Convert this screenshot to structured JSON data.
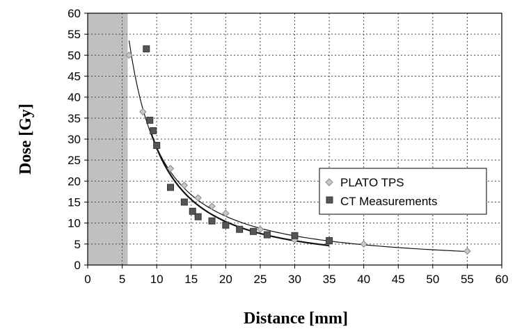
{
  "chart_data": {
    "type": "scatter",
    "title": "",
    "xlabel": "Distance [mm]",
    "ylabel": "Dose [Gy]",
    "xlim": [
      0,
      60
    ],
    "ylim": [
      0,
      60
    ],
    "xticks": [
      0,
      5,
      10,
      15,
      20,
      25,
      30,
      35,
      40,
      45,
      50,
      55,
      60
    ],
    "yticks": [
      0,
      5,
      10,
      15,
      20,
      25,
      30,
      35,
      40,
      45,
      50,
      55,
      60
    ],
    "grid": true,
    "legend_position": "center-right",
    "shaded_region": {
      "x": [
        0,
        5.8
      ],
      "color": "#c0c0c0"
    },
    "series": [
      {
        "name": "PLATO TPS",
        "marker": "diamond",
        "color": "#c8c8c8",
        "x": [
          6,
          8,
          10,
          12,
          14,
          16,
          18,
          20,
          25,
          30,
          35,
          40,
          55
        ],
        "y": [
          50,
          36.5,
          28.5,
          23,
          19,
          16,
          14,
          12.3,
          8.5,
          6,
          5.5,
          5,
          3.3
        ]
      },
      {
        "name": "CT Measurements",
        "marker": "square",
        "color": "#555555",
        "x": [
          8.5,
          9,
          9.5,
          10,
          12,
          14,
          15.2,
          16,
          18,
          20,
          22,
          24,
          26,
          30,
          35
        ],
        "y": [
          51.5,
          34.5,
          32,
          28.5,
          18.5,
          15,
          12.8,
          11.5,
          10.5,
          9.5,
          8.5,
          8,
          7.2,
          7,
          5.8
        ]
      }
    ],
    "fits": [
      {
        "series": "PLATO TPS",
        "stroke_width": 1.2,
        "x_range": [
          6,
          55
        ]
      },
      {
        "series": "CT Measurements",
        "stroke_width": 2.2,
        "x_range": [
          9,
          35
        ]
      }
    ]
  }
}
